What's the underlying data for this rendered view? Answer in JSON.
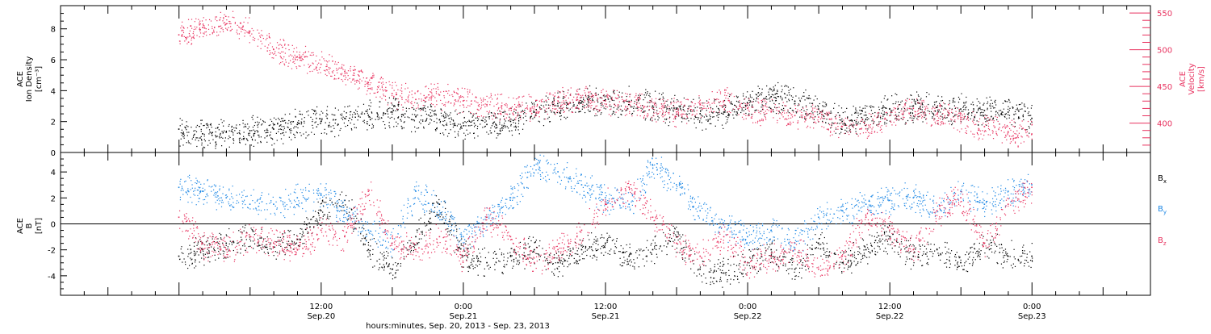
{
  "chart_data": [
    {
      "type": "scatter",
      "ylabel": [
        "ACE",
        "Ion Density",
        "[cm⁻³]"
      ],
      "y2label": [
        "ACE",
        "Velocity",
        "[km/s]"
      ],
      "ylim": [
        0,
        9.5
      ],
      "y2lim": [
        360,
        560
      ],
      "yticks": [
        0,
        2,
        4,
        6,
        8
      ],
      "y2ticks": [
        400,
        450,
        500,
        550
      ],
      "series": [
        {
          "color": "#000000",
          "axis": "left",
          "x": [
            0,
            2,
            4,
            6,
            8,
            10,
            12,
            14,
            16,
            18,
            20,
            22,
            24,
            26,
            28,
            30,
            32,
            34,
            36,
            38,
            40,
            42,
            44,
            46,
            48,
            50,
            52,
            54,
            56,
            58,
            60,
            62,
            64,
            66,
            68,
            70,
            72
          ],
          "values": [
            1.5,
            1.2,
            1.3,
            1.4,
            1.5,
            1.8,
            2.0,
            2.2,
            2.4,
            2.6,
            2.3,
            2.1,
            1.9,
            1.8,
            2.0,
            2.6,
            3.0,
            3.2,
            3.4,
            3.3,
            3.0,
            2.8,
            2.5,
            2.6,
            3.2,
            3.6,
            3.3,
            2.8,
            2.0,
            2.4,
            2.8,
            3.0,
            2.9,
            2.8,
            2.7,
            2.6,
            2.2
          ]
        },
        {
          "color": "#e8325f",
          "axis": "right",
          "x": [
            0,
            2,
            4,
            6,
            8,
            10,
            12,
            14,
            16,
            18,
            20,
            22,
            24,
            26,
            28,
            30,
            32,
            34,
            36,
            38,
            40,
            42,
            44,
            46,
            48,
            50,
            52,
            54,
            56,
            58,
            60,
            62,
            64,
            66,
            68,
            70,
            72
          ],
          "values": [
            520,
            530,
            535,
            525,
            500,
            490,
            480,
            470,
            455,
            440,
            432,
            438,
            430,
            425,
            420,
            422,
            430,
            435,
            430,
            428,
            420,
            415,
            425,
            430,
            420,
            415,
            410,
            408,
            395,
            392,
            410,
            420,
            412,
            405,
            395,
            388,
            385
          ]
        }
      ]
    },
    {
      "type": "scatter",
      "ylabel": [
        "ACE",
        "B",
        "[nT]"
      ],
      "ylim": [
        -5.5,
        5.5
      ],
      "yticks": [
        -4,
        -2,
        0,
        2,
        4
      ],
      "series": [
        {
          "name": "Bx",
          "color": "#000000",
          "x": [
            0,
            2,
            4,
            6,
            8,
            10,
            12,
            14,
            16,
            18,
            20,
            22,
            24,
            26,
            28,
            30,
            32,
            34,
            36,
            38,
            40,
            42,
            44,
            46,
            48,
            50,
            52,
            54,
            56,
            58,
            60,
            62,
            64,
            66,
            68,
            70,
            72
          ],
          "values": [
            -2.5,
            -2.0,
            -1.5,
            -1.0,
            -1.8,
            -1.2,
            1.0,
            1.8,
            -2.0,
            -3.5,
            -1.0,
            1.5,
            -2.5,
            -3.0,
            -2.5,
            -2.0,
            -3.0,
            -2.0,
            -1.5,
            -2.5,
            -2.0,
            -1.0,
            -3.5,
            -3.8,
            -3.0,
            -2.0,
            -3.5,
            -1.5,
            -3.0,
            -2.0,
            -1.0,
            -2.5,
            -2.0,
            -3.0,
            -1.5,
            -2.5,
            -2.5
          ]
        },
        {
          "name": "By",
          "color": "#1e88e5",
          "x": [
            0,
            2,
            4,
            6,
            8,
            10,
            12,
            14,
            16,
            18,
            20,
            22,
            24,
            26,
            28,
            30,
            32,
            34,
            36,
            38,
            40,
            42,
            44,
            46,
            48,
            50,
            52,
            54,
            56,
            58,
            60,
            62,
            64,
            66,
            68,
            70,
            72
          ],
          "values": [
            2.8,
            2.5,
            2.0,
            1.5,
            1.5,
            2.0,
            2.3,
            1.0,
            -0.5,
            -1.5,
            2.5,
            1.0,
            -1.0,
            0.5,
            2.0,
            4.5,
            4.0,
            3.0,
            2.0,
            1.5,
            4.5,
            3.0,
            1.0,
            0.0,
            -1.0,
            -0.5,
            -1.5,
            0.5,
            1.0,
            1.5,
            1.8,
            2.0,
            1.0,
            2.5,
            1.5,
            2.5,
            3.0
          ]
        },
        {
          "name": "Bz",
          "color": "#e8325f",
          "x": [
            0,
            2,
            4,
            6,
            8,
            10,
            12,
            14,
            16,
            18,
            20,
            22,
            24,
            26,
            28,
            30,
            32,
            34,
            36,
            38,
            40,
            42,
            44,
            46,
            48,
            50,
            52,
            54,
            56,
            58,
            60,
            62,
            64,
            66,
            68,
            70,
            72
          ],
          "values": [
            0.5,
            -1.5,
            -2.0,
            -1.0,
            -1.5,
            -2.0,
            -0.5,
            -1.0,
            2.5,
            -1.5,
            -2.0,
            -1.0,
            -2.5,
            0.5,
            -1.0,
            -3.0,
            -2.0,
            -0.5,
            1.5,
            2.8,
            0.5,
            -1.5,
            -2.5,
            -1.0,
            -3.0,
            -2.5,
            -2.0,
            -3.5,
            -2.5,
            0.5,
            -0.5,
            -2.0,
            1.0,
            2.0,
            -1.5,
            1.5,
            2.8
          ]
        }
      ]
    }
  ],
  "x_axis": {
    "range_hours": [
      -10,
      82
    ],
    "ticks": [
      {
        "h": 12,
        "top": "12:00",
        "bottom": "Sep.20"
      },
      {
        "h": 24,
        "top": "0:00",
        "bottom": "Sep.21"
      },
      {
        "h": 36,
        "top": "12:00",
        "bottom": "Sep.21"
      },
      {
        "h": 48,
        "top": "0:00",
        "bottom": "Sep.22"
      },
      {
        "h": 60,
        "top": "12:00",
        "bottom": "Sep.22"
      },
      {
        "h": 72,
        "top": "0:00",
        "bottom": "Sep.23"
      }
    ],
    "caption": "hours:minutes, Sep. 20, 2013 - Sep. 23, 2013"
  },
  "legend": [
    {
      "label": "B",
      "sub": "x",
      "color": "#000000"
    },
    {
      "label": "B",
      "sub": "y",
      "color": "#1e88e5"
    },
    {
      "label": "B",
      "sub": "z",
      "color": "#e8325f"
    }
  ]
}
